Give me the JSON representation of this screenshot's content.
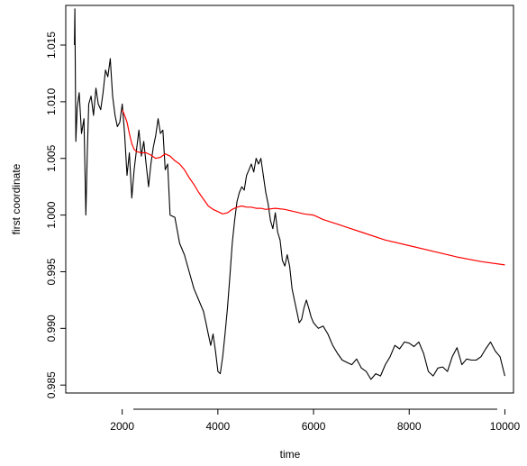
{
  "chart_data": {
    "type": "line",
    "title": "",
    "xlabel": "time",
    "ylabel": "first coordinate",
    "xlim": [
      820,
      10180
    ],
    "ylim": [
      0.9843,
      1.0185
    ],
    "x_ticks": [
      2000,
      4000,
      6000,
      8000,
      10000
    ],
    "x_tick_labels": [
      "2000",
      "4000",
      "6000",
      "8000",
      "10000"
    ],
    "y_ticks": [
      0.985,
      0.99,
      0.995,
      1.0,
      1.005,
      1.01,
      1.015
    ],
    "y_tick_labels": [
      "0.985",
      "0.990",
      "0.995",
      "1.000",
      "1.005",
      "1.010",
      "1.015"
    ],
    "grid": false,
    "legend": "none",
    "series": [
      {
        "color": "#000000",
        "x": [
          1000,
          1010,
          1030,
          1060,
          1100,
          1150,
          1200,
          1240,
          1270,
          1300,
          1350,
          1400,
          1450,
          1500,
          1550,
          1600,
          1650,
          1700,
          1750,
          1800,
          1850,
          1900,
          1950,
          2000,
          2050,
          2100,
          2150,
          2200,
          2250,
          2300,
          2350,
          2400,
          2450,
          2500,
          2550,
          2600,
          2650,
          2700,
          2750,
          2800,
          2850,
          2900,
          2950,
          3000,
          3100,
          3200,
          3300,
          3400,
          3500,
          3600,
          3700,
          3750,
          3800,
          3850,
          3900,
          3950,
          4000,
          4050,
          4100,
          4150,
          4200,
          4250,
          4300,
          4350,
          4400,
          4450,
          4500,
          4550,
          4600,
          4650,
          4700,
          4750,
          4800,
          4850,
          4900,
          4950,
          5000,
          5050,
          5100,
          5150,
          5200,
          5250,
          5300,
          5350,
          5400,
          5450,
          5500,
          5550,
          5600,
          5650,
          5700,
          5750,
          5800,
          5850,
          5900,
          5950,
          6000,
          6100,
          6200,
          6300,
          6400,
          6500,
          6600,
          6700,
          6800,
          6900,
          7000,
          7100,
          7200,
          7300,
          7400,
          7500,
          7600,
          7700,
          7800,
          7900,
          8000,
          8100,
          8200,
          8300,
          8400,
          8500,
          8600,
          8700,
          8800,
          8900,
          9000,
          9100,
          9200,
          9300,
          9400,
          9500,
          9600,
          9700,
          9800,
          9900,
          10000
        ],
        "y": [
          1.015,
          1.0182,
          1.0065,
          1.0095,
          1.0108,
          1.0072,
          1.0085,
          1.0,
          1.0055,
          1.0098,
          1.0105,
          1.0088,
          1.0112,
          1.0098,
          1.0093,
          1.0108,
          1.0128,
          1.0122,
          1.0138,
          1.0105,
          1.0088,
          1.0078,
          1.0082,
          1.0098,
          1.0072,
          1.0035,
          1.0055,
          1.0015,
          1.004,
          1.0058,
          1.0075,
          1.0052,
          1.0065,
          1.0045,
          1.0025,
          1.0045,
          1.006,
          1.007,
          1.0085,
          1.0072,
          1.0075,
          1.004,
          1.0045,
          1.0,
          0.9998,
          0.9975,
          0.9965,
          0.995,
          0.9935,
          0.9925,
          0.9915,
          0.9905,
          0.9895,
          0.9885,
          0.9895,
          0.988,
          0.9862,
          0.986,
          0.9875,
          0.9895,
          0.9918,
          0.9945,
          0.9975,
          0.9995,
          1.0012,
          1.002,
          1.0025,
          1.0022,
          1.0035,
          1.004,
          1.0045,
          1.0038,
          1.005,
          1.0045,
          1.005,
          1.0035,
          1.002,
          1.001,
          0.9995,
          0.9988,
          1.0002,
          0.9985,
          0.9978,
          0.996,
          0.9955,
          0.9965,
          0.9955,
          0.9935,
          0.9925,
          0.9915,
          0.9905,
          0.9908,
          0.9918,
          0.9925,
          0.9918,
          0.991,
          0.9905,
          0.99,
          0.9902,
          0.9895,
          0.9885,
          0.9878,
          0.9872,
          0.987,
          0.9868,
          0.9873,
          0.9865,
          0.9862,
          0.9855,
          0.986,
          0.9858,
          0.9868,
          0.9875,
          0.9885,
          0.9882,
          0.9888,
          0.9887,
          0.9884,
          0.9888,
          0.9878,
          0.9862,
          0.9858,
          0.9865,
          0.9866,
          0.9862,
          0.9875,
          0.9883,
          0.9868,
          0.9873,
          0.9872,
          0.9872,
          0.9875,
          0.9882,
          0.9888,
          0.988,
          0.9875,
          0.9858
        ]
      },
      {
        "color": "#ff0000",
        "x": [
          2000,
          2050,
          2100,
          2150,
          2200,
          2250,
          2300,
          2400,
          2500,
          2600,
          2700,
          2800,
          2900,
          3000,
          3100,
          3200,
          3300,
          3400,
          3500,
          3600,
          3700,
          3800,
          3900,
          4000,
          4100,
          4200,
          4300,
          4400,
          4500,
          4600,
          4700,
          4800,
          4900,
          5000,
          5200,
          5400,
          5600,
          5800,
          6000,
          6200,
          6500,
          7000,
          7500,
          8000,
          8500,
          9000,
          9500,
          10000
        ],
        "y": [
          1.0093,
          1.0088,
          1.0082,
          1.0072,
          1.0063,
          1.0058,
          1.0056,
          1.0055,
          1.0055,
          1.0053,
          1.005,
          1.0051,
          1.0054,
          1.0052,
          1.0048,
          1.0045,
          1.004,
          1.0033,
          1.0027,
          1.002,
          1.0014,
          1.0008,
          1.0005,
          1.0003,
          1.0001,
          1.0002,
          1.0005,
          1.0007,
          1.0008,
          1.0007,
          1.0007,
          1.0006,
          1.0006,
          1.0005,
          1.0006,
          1.0005,
          1.0003,
          1.0001,
          1.0,
          0.9996,
          0.9992,
          0.9985,
          0.9978,
          0.9973,
          0.9968,
          0.9963,
          0.9959,
          0.9956
        ]
      }
    ]
  }
}
